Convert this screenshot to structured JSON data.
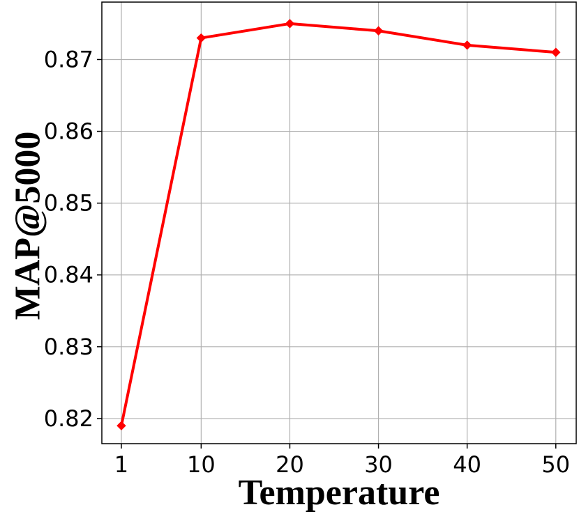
{
  "chart_data": {
    "type": "line",
    "title": "",
    "xlabel": "Temperature",
    "ylabel": "MAP@5000",
    "x": [
      1,
      10,
      20,
      30,
      40,
      50
    ],
    "x_tick_labels": [
      "1",
      "10",
      "20",
      "30",
      "40",
      "50"
    ],
    "y_ticks": [
      0.82,
      0.83,
      0.84,
      0.85,
      0.86,
      0.87
    ],
    "y_tick_labels": [
      "0.82",
      "0.83",
      "0.84",
      "0.85",
      "0.86",
      "0.87"
    ],
    "ylim": [
      0.8165,
      0.878
    ],
    "xlim": [
      -1.2,
      52.3
    ],
    "grid": true,
    "series": [
      {
        "color": "#ff0000",
        "marker": "diamond",
        "values": [
          0.819,
          0.873,
          0.875,
          0.874,
          0.872,
          0.871
        ]
      }
    ]
  }
}
